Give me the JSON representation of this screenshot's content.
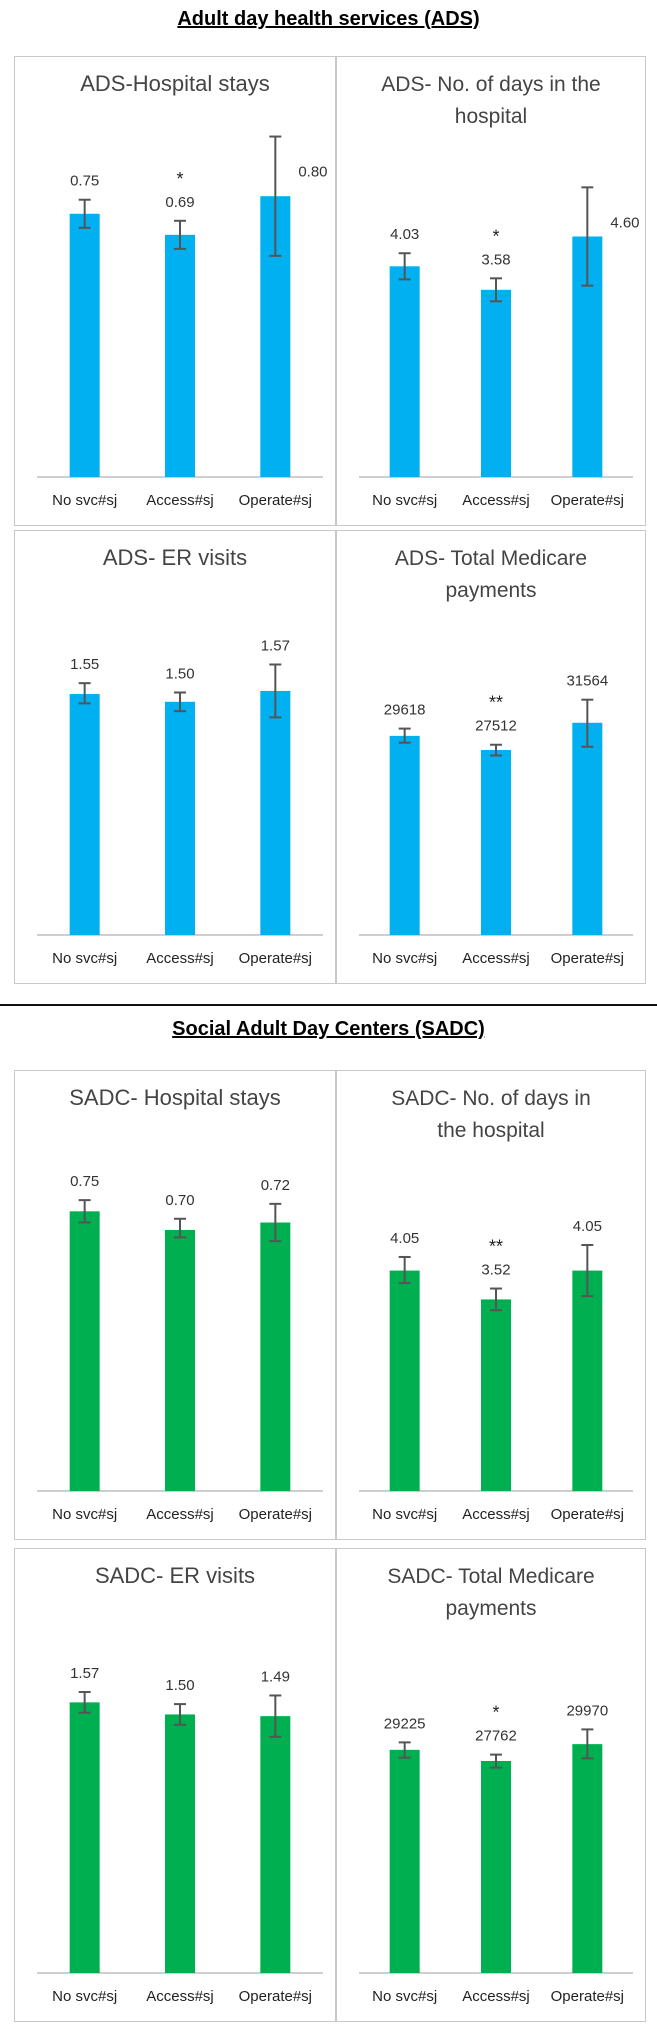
{
  "sections": [
    {
      "title": "Adult day health services (ADS)"
    },
    {
      "title": "Social Adult Day Centers (SADC)"
    }
  ],
  "colors": {
    "ads": "#00b0f0",
    "sadc": "#00b050",
    "error_bar": "#555555",
    "axis": "#bfbfbf"
  },
  "chart_data": [
    {
      "type": "bar",
      "title": [
        "ADS-Hospital stays"
      ],
      "color_key": "ads",
      "categories": [
        "No svc#sj",
        "Access#sj",
        "Operate#sj"
      ],
      "values": [
        0.75,
        0.69,
        0.8
      ],
      "labels": [
        "0.75",
        "0.69",
        "0.80"
      ],
      "error": [
        [
          0.71,
          0.79
        ],
        [
          0.65,
          0.73
        ],
        [
          0.63,
          0.97
        ]
      ],
      "significance": [
        "",
        "*",
        ""
      ],
      "ylim": [
        0,
        1.02
      ]
    },
    {
      "type": "bar",
      "title": [
        "ADS- No. of days in the",
        "hospital"
      ],
      "color_key": "ads",
      "categories": [
        "No svc#sj",
        "Access#sj",
        "Operate#sj"
      ],
      "values": [
        4.03,
        3.58,
        4.6
      ],
      "labels": [
        "4.03",
        "3.58",
        "4.60"
      ],
      "error": [
        [
          3.78,
          4.28
        ],
        [
          3.36,
          3.8
        ],
        [
          3.66,
          5.54
        ]
      ],
      "significance": [
        "",
        "*",
        ""
      ],
      "ylim": [
        0,
        6.35
      ]
    },
    {
      "type": "bar",
      "title": [
        "ADS- ER visits"
      ],
      "color_key": "ads",
      "categories": [
        "No svc#sj",
        "Access#sj",
        "Operate#sj"
      ],
      "values": [
        1.55,
        1.5,
        1.57
      ],
      "labels": [
        "1.55",
        "1.50",
        "1.57"
      ],
      "error": [
        [
          1.49,
          1.62
        ],
        [
          1.44,
          1.56
        ],
        [
          1.4,
          1.74
        ]
      ],
      "significance": [
        "",
        "",
        ""
      ],
      "ylim": [
        0,
        2.2
      ]
    },
    {
      "type": "bar",
      "title": [
        "ADS- Total Medicare",
        "payments"
      ],
      "color_key": "ads",
      "categories": [
        "No svc#sj",
        "Access#sj",
        "Operate#sj"
      ],
      "values": [
        29618,
        27512,
        31564
      ],
      "labels": [
        "29618",
        "27512",
        "31564"
      ],
      "error": [
        [
          28600,
          30700
        ],
        [
          26700,
          28300
        ],
        [
          28000,
          35000
        ]
      ],
      "significance": [
        "",
        "**",
        ""
      ],
      "ylim": [
        0,
        47000
      ]
    },
    {
      "type": "bar",
      "title": [
        "SADC- Hospital stays"
      ],
      "color_key": "sadc",
      "categories": [
        "No svc#sj",
        "Access#sj",
        "Operate#sj"
      ],
      "values": [
        0.75,
        0.7,
        0.72
      ],
      "labels": [
        "0.75",
        "0.70",
        "0.72"
      ],
      "error": [
        [
          0.72,
          0.78
        ],
        [
          0.68,
          0.73
        ],
        [
          0.67,
          0.77
        ]
      ],
      "significance": [
        "",
        "",
        ""
      ],
      "ylim": [
        0,
        0.96
      ]
    },
    {
      "type": "bar",
      "title": [
        "SADC- No. of days in",
        "the hospital"
      ],
      "color_key": "sadc",
      "categories": [
        "No svc#sj",
        "Access#sj",
        "Operate#sj"
      ],
      "values": [
        4.05,
        3.52,
        4.05
      ],
      "labels": [
        "4.05",
        "3.52",
        "4.05"
      ],
      "error": [
        [
          3.82,
          4.3
        ],
        [
          3.32,
          3.72
        ],
        [
          3.58,
          4.52
        ]
      ],
      "significance": [
        "",
        "**",
        ""
      ],
      "ylim": [
        0,
        6.1
      ]
    },
    {
      "type": "bar",
      "title": [
        "SADC- ER visits"
      ],
      "color_key": "sadc",
      "categories": [
        "No svc#sj",
        "Access#sj",
        "Operate#sj"
      ],
      "values": [
        1.57,
        1.5,
        1.49
      ],
      "labels": [
        "1.57",
        "1.50",
        "1.49"
      ],
      "error": [
        [
          1.51,
          1.63
        ],
        [
          1.44,
          1.56
        ],
        [
          1.37,
          1.61
        ]
      ],
      "significance": [
        "",
        "",
        ""
      ],
      "ylim": [
        0,
        2.1
      ]
    },
    {
      "type": "bar",
      "title": [
        "SADC- Total Medicare",
        "payments"
      ],
      "color_key": "sadc",
      "categories": [
        "No svc#sj",
        "Access#sj",
        "Operate#sj"
      ],
      "values": [
        29225,
        27762,
        29970
      ],
      "labels": [
        "29225",
        "27762",
        "29970"
      ],
      "error": [
        [
          28200,
          30200
        ],
        [
          26900,
          28600
        ],
        [
          28100,
          31900
        ]
      ],
      "significance": [
        "",
        "*",
        ""
      ],
      "ylim": [
        0,
        44000
      ]
    }
  ]
}
